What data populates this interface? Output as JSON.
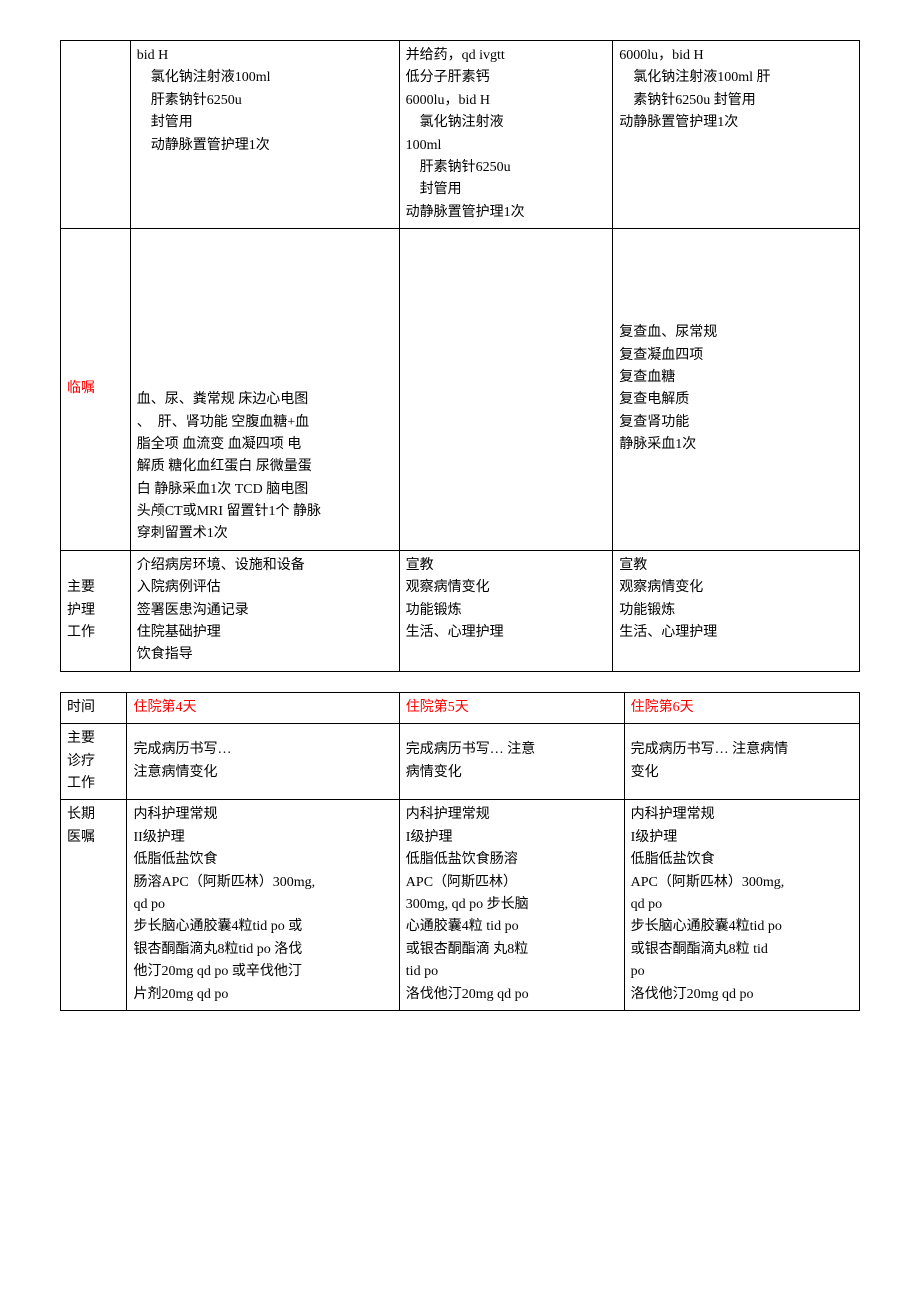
{
  "table1": {
    "row1": {
      "c1": "",
      "c2_lines": [
        "bid H",
        "　氯化钠注射液100ml",
        "　肝素钠针6250u",
        "　封管用",
        "　动静脉置管护理1次"
      ],
      "c3_lines": [
        "并给药，qd ivgtt",
        "低分子肝素钙",
        "6000lu，bid H",
        "　氯化钠注射液",
        "100ml",
        "　肝素钠针6250u",
        "　封管用",
        "动静脉置管护理1次"
      ],
      "c4_lines": [
        "6000lu，bid H",
        "　氯化钠注射液100ml 肝",
        "　素钠针6250u 封管用",
        "动静脉置管护理1次"
      ]
    },
    "row2": {
      "c1": "临嘱",
      "c2_lines": [
        "血、尿、粪常规 床边心电图",
        "、　肝、肾功能 空腹血糖+血",
        "脂全项 血流变 血凝四项 电",
        "解质 糖化血红蛋白 尿微量蛋",
        "白 静脉采血1次 TCD 脑电图",
        "头颅CT或MRI 留置针1个 静脉",
        "穿刺留置术1次"
      ],
      "c3_lines": [],
      "c4_lines": [
        "复查血、尿常规",
        "复查凝血四项",
        "复查血糖",
        "复查电解质",
        "复查肾功能",
        "静脉采血1次"
      ]
    },
    "row3": {
      "c1_lines": [
        "主要",
        "护理",
        "工作"
      ],
      "c2_lines": [
        "介绍病房环境、设施和设备",
        "入院病例评估",
        "签署医患沟通记录",
        "住院基础护理",
        "饮食指导"
      ],
      "c3_lines": [
        "宣教",
        "观察病情变化",
        "功能锻炼",
        "生活、心理护理"
      ],
      "c4_lines": [
        "宣教",
        "观察病情变化",
        "功能锻炼",
        "生活、心理护理"
      ]
    }
  },
  "table2": {
    "row1": {
      "c1": "时间",
      "c2": "住院第4天",
      "c3": "住院第5天",
      "c4": "住院第6天"
    },
    "row2": {
      "c1_lines": [
        "主要",
        "诊疗",
        "工作"
      ],
      "c2_lines": [
        "完成病历书写…",
        "注意病情变化"
      ],
      "c3_lines": [
        "完成病历书写… 注意",
        "病情变化"
      ],
      "c4_lines": [
        "完成病历书写… 注意病情",
        "变化"
      ]
    },
    "row3": {
      "c1_lines": [
        "长期",
        "医嘱"
      ],
      "c2_lines": [
        "内科护理常规",
        "II级护理",
        "低脂低盐饮食",
        "肠溶APC（阿斯匹林）300mg,",
        "qd po",
        "步长脑心通胶囊4粒tid po 或",
        "银杏酮酯滴丸8粒tid po 洛伐",
        "他汀20mg qd po 或辛伐他汀",
        "片剂20mg qd po"
      ],
      "c3_lines": [
        "内科护理常规",
        "I级护理",
        "低脂低盐饮食肠溶",
        "APC（阿斯匹林）",
        "300mg, qd po 步长脑",
        "心通胶囊4粒 tid po",
        "或银杏酮酯滴 丸8粒",
        "tid po",
        "洛伐他汀20mg qd po"
      ],
      "c4_lines": [
        "内科护理常规",
        "I级护理",
        "低脂低盐饮食",
        "APC（阿斯匹林）300mg,",
        "qd po",
        "步长脑心通胶囊4粒tid po",
        "或银杏酮酯滴丸8粒 tid",
        "po",
        "洛伐他汀20mg qd po"
      ]
    }
  }
}
